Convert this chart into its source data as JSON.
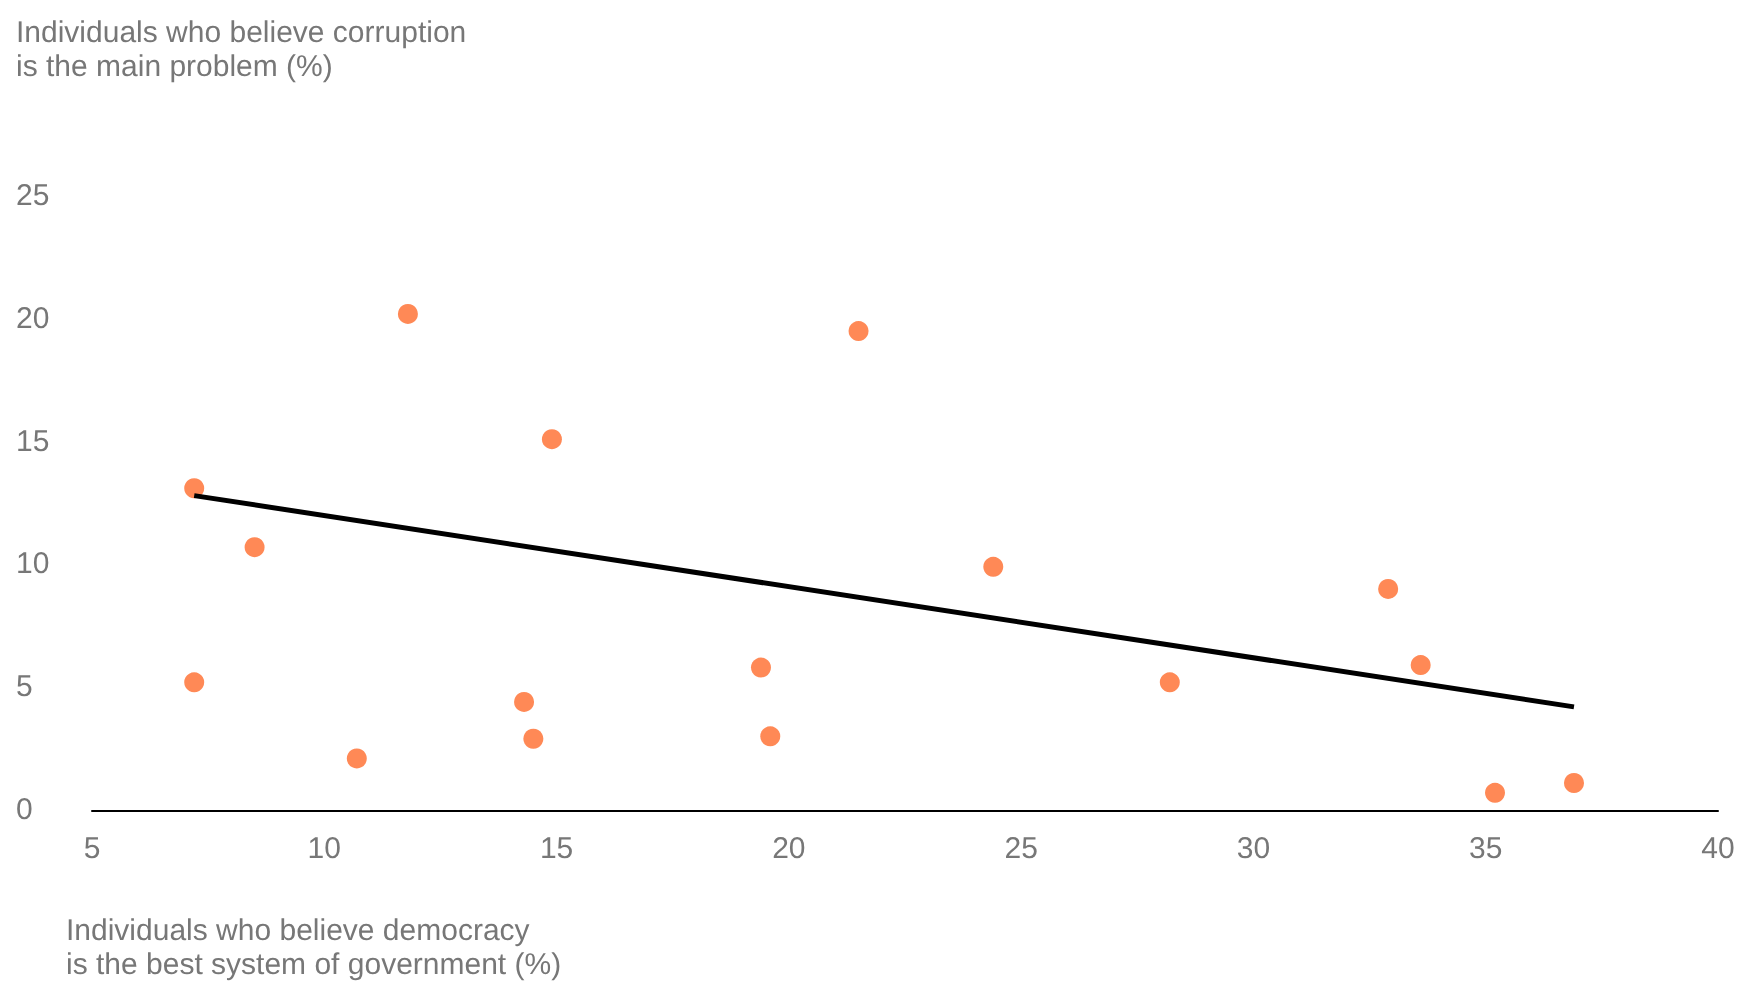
{
  "chart_data": {
    "type": "scatter",
    "xlabel": "Individuals who believe democracy\nis the best system of government (%)",
    "ylabel": "Individuals who believe corruption\nis the main problem (%)",
    "x": [
      7.2,
      7.2,
      8.5,
      10.7,
      11.8,
      14.3,
      14.5,
      14.9,
      19.4,
      19.6,
      21.5,
      24.4,
      28.2,
      32.9,
      33.6,
      35.2,
      36.9
    ],
    "series": [
      {
        "color": "#ff6b2c",
        "marker": "circle",
        "values": [
          13.1,
          5.2,
          10.7,
          2.1,
          20.2,
          4.4,
          2.9,
          15.1,
          5.8,
          3.0,
          19.5,
          9.9,
          5.2,
          9.0,
          5.9,
          0.7,
          1.1
        ]
      },
      {
        "type": "line",
        "color": "#000000",
        "marker": "none",
        "x": [
          7.2,
          36.9
        ],
        "values": [
          12.8,
          4.2
        ]
      }
    ],
    "xlim": [
      5,
      40
    ],
    "xticks": [
      5,
      10,
      15,
      20,
      25,
      30,
      35,
      40
    ],
    "ylim": [
      0,
      25
    ],
    "yticks": [
      0,
      5,
      10,
      15,
      20,
      25
    ],
    "grid": false
  }
}
